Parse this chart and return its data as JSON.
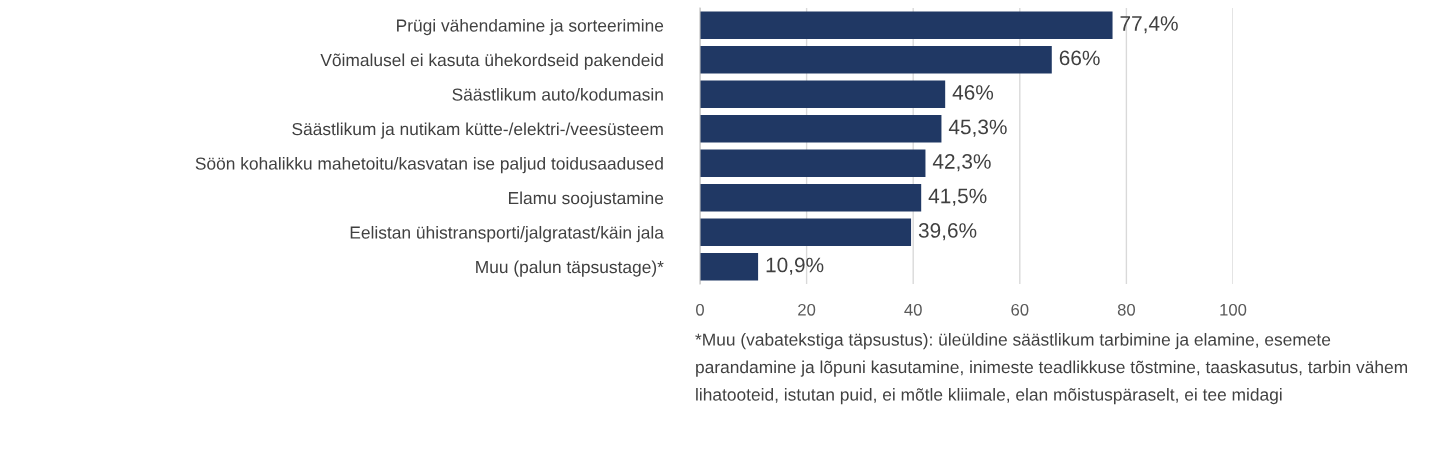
{
  "chart_data": {
    "type": "bar",
    "orientation": "horizontal",
    "categories": [
      "Prügi vähendamine ja sorteerimine",
      "Võimalusel ei kasuta ühekordseid pakendeid",
      "Säästlikum auto/kodumasin",
      "Säästlikum ja nutikam kütte-/elektri-/veesüsteem",
      "Söön kohalikku mahetoitu/kasvatan ise paljud toidusaadused",
      "Elamu soojustamine",
      "Eelistan ühistransporti/jalgratast/käin jala",
      "Muu (palun täpsustage)*"
    ],
    "values": [
      77.4,
      66,
      46,
      45.3,
      42.3,
      41.5,
      39.6,
      10.9
    ],
    "value_labels": [
      "77,4%",
      "66%",
      "46%",
      "45,3%",
      "42,3%",
      "41,5%",
      "39,6%",
      "10,9%"
    ],
    "color": "#203864",
    "xlim": [
      0,
      100
    ],
    "xticks": [
      0,
      20,
      40,
      60,
      80,
      100
    ],
    "grid": "x",
    "annotations": [
      "*Muu (vabatekstiga täpsustus): üleüldine säästlikum tarbimine ja elamine, esemete parandamine ja lõpuni kasutamine, inimeste teadlikkuse tõstmine, taaskasutus, tarbin vähem lihatooteid, istutan puid, ei mõtle kliimale, elan mõistuspäraselt, ei tee midagi"
    ]
  }
}
